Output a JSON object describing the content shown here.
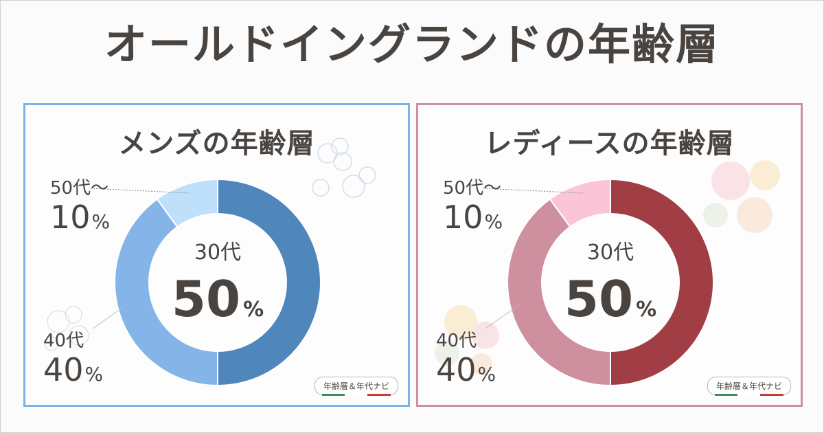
{
  "title": "オールドイングランドの年齢層",
  "colors": {
    "men_border": "#7fb0e6",
    "women_border": "#cc8fa2"
  },
  "credit": "年齢層＆年代ナビ",
  "chart_data": [
    {
      "type": "pie",
      "title": "メンズの年齢層",
      "categories": [
        "30代",
        "40代",
        "50代～"
      ],
      "values": [
        50,
        40,
        10
      ],
      "unit": "%",
      "colors": [
        "#4f86bb",
        "#85b4e8",
        "#bfe0fb"
      ],
      "center": {
        "label": "30代",
        "value": "50",
        "unit": "%"
      },
      "labels": [
        {
          "category": "50代～",
          "value": "10",
          "unit": "%"
        },
        {
          "category": "40代",
          "value": "40",
          "unit": "%"
        }
      ]
    },
    {
      "type": "pie",
      "title": "レディースの年齢層",
      "categories": [
        "30代",
        "40代",
        "50代～"
      ],
      "values": [
        50,
        40,
        10
      ],
      "unit": "%",
      "colors": [
        "#a13e45",
        "#ce8f9f",
        "#fcc5d7"
      ],
      "center": {
        "label": "30代",
        "value": "50",
        "unit": "%"
      },
      "labels": [
        {
          "category": "50代～",
          "value": "10",
          "unit": "%"
        },
        {
          "category": "40代",
          "value": "40",
          "unit": "%"
        }
      ]
    }
  ]
}
